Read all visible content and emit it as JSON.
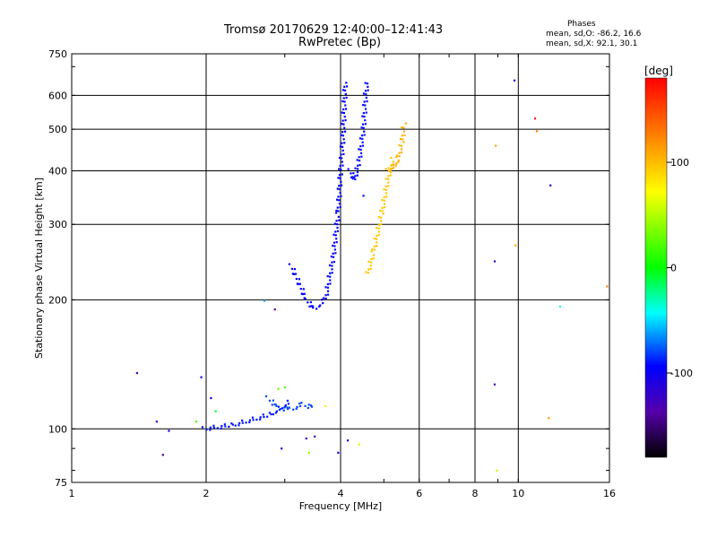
{
  "chart_data": {
    "type": "scatter",
    "title": "Tromsø 20170629 12:40:00–12:41:43",
    "subtitle": "RwPretec (Bp)",
    "xlabel": "Frequency [MHz]",
    "ylabel": "Stationary phase Virtual Height [km]",
    "x_scale": "log",
    "y_scale": "log",
    "xlim": [
      1,
      16
    ],
    "ylim": [
      75,
      750
    ],
    "x_ticks": [
      1,
      2,
      4,
      6,
      8,
      10,
      16
    ],
    "x_tick_labels": [
      "1",
      "2",
      "4",
      "6",
      "8",
      "10",
      "16"
    ],
    "y_ticks": [
      75,
      100,
      200,
      300,
      400,
      500,
      600,
      750
    ],
    "y_tick_labels": [
      "75",
      "100",
      "200",
      "300",
      "400",
      "500",
      "600",
      "750"
    ],
    "grid": true,
    "stats": {
      "title": "Phases",
      "line_o": "mean, sd,O: -86.2, 16.6",
      "line_x": "mean, sd,X:  92.1, 30.1"
    },
    "colorbar": {
      "label": "[deg]",
      "range": [
        -180,
        180
      ],
      "ticks": [
        100,
        0,
        -100
      ],
      "tick_labels": [
        "100",
        "0",
        "-100"
      ]
    },
    "series": [
      {
        "traces": [
          {
            "x": [
              1.98,
              2.3,
              2.8,
              3.1
            ],
            "y": [
              100,
              102,
              108,
              116
            ],
            "phase": -90
          },
          {
            "x": [
              2.75,
              2.9,
              3.1,
              3.3,
              3.5
            ],
            "y": [
              118,
              112,
              111,
              114,
              112
            ],
            "phase": -80
          },
          {
            "x": [
              3.1,
              3.35,
              3.5,
              3.7,
              3.85,
              3.95,
              4.0,
              4.05,
              4.1
            ],
            "y": [
              240,
              200,
              190,
              200,
              250,
              320,
              400,
              480,
              650
            ],
            "phase": -95
          },
          {
            "x": [
              4.2,
              4.3,
              4.4,
              4.5,
              4.55,
              4.6
            ],
            "y": [
              400,
              380,
              420,
              500,
              600,
              650
            ],
            "phase": -92
          },
          {
            "x": [
              4.6,
              4.75,
              4.95,
              5.1,
              5.25
            ],
            "y": [
              230,
              260,
              320,
              380,
              430
            ],
            "phase": 95
          },
          {
            "x": [
              5.1,
              5.3,
              5.4,
              5.5,
              5.55
            ],
            "y": [
              400,
              410,
              430,
              470,
              520
            ],
            "phase": 105
          }
        ],
        "scatter": [
          {
            "x": 1.4,
            "y": 135,
            "phase": -130
          },
          {
            "x": 1.55,
            "y": 104,
            "phase": -120
          },
          {
            "x": 1.65,
            "y": 99,
            "phase": -110
          },
          {
            "x": 1.6,
            "y": 87,
            "phase": -140
          },
          {
            "x": 1.9,
            "y": 104,
            "phase": 20
          },
          {
            "x": 1.95,
            "y": 132,
            "phase": -100
          },
          {
            "x": 2.05,
            "y": 118,
            "phase": -105
          },
          {
            "x": 2.1,
            "y": 110,
            "phase": -10
          },
          {
            "x": 2.7,
            "y": 199,
            "phase": -60
          },
          {
            "x": 2.85,
            "y": 190,
            "phase": -140
          },
          {
            "x": 2.9,
            "y": 124,
            "phase": 30
          },
          {
            "x": 2.95,
            "y": 90,
            "phase": -100
          },
          {
            "x": 3.0,
            "y": 125,
            "phase": 20
          },
          {
            "x": 3.35,
            "y": 95,
            "phase": -125
          },
          {
            "x": 3.4,
            "y": 88,
            "phase": 40
          },
          {
            "x": 3.5,
            "y": 96,
            "phase": -130
          },
          {
            "x": 3.7,
            "y": 113,
            "phase": 80
          },
          {
            "x": 3.95,
            "y": 88,
            "phase": -100
          },
          {
            "x": 4.15,
            "y": 94,
            "phase": -100
          },
          {
            "x": 4.4,
            "y": 92,
            "phase": 60
          },
          {
            "x": 4.5,
            "y": 350,
            "phase": -90
          },
          {
            "x": 8.85,
            "y": 246,
            "phase": -120
          },
          {
            "x": 8.85,
            "y": 127,
            "phase": -130
          },
          {
            "x": 8.9,
            "y": 458,
            "phase": 110
          },
          {
            "x": 8.95,
            "y": 80,
            "phase": 60
          },
          {
            "x": 9.8,
            "y": 650,
            "phase": -105
          },
          {
            "x": 9.85,
            "y": 268,
            "phase": 105
          },
          {
            "x": 10.9,
            "y": 530,
            "phase": 170
          },
          {
            "x": 11.0,
            "y": 495,
            "phase": 120
          },
          {
            "x": 11.7,
            "y": 106,
            "phase": 110
          },
          {
            "x": 11.8,
            "y": 370,
            "phase": -115
          },
          {
            "x": 12.4,
            "y": 193,
            "phase": -40
          },
          {
            "x": 15.8,
            "y": 215,
            "phase": 125
          }
        ]
      }
    ]
  }
}
